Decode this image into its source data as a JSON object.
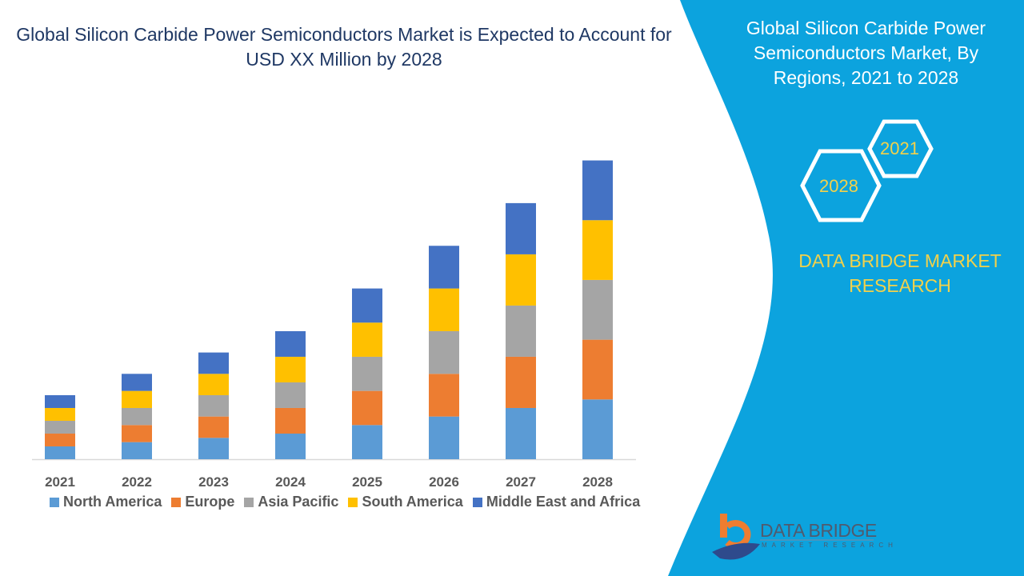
{
  "title": "Global Silicon Carbide Power Semiconductors Market is Expected to Account for USD XX Million by 2028",
  "side_panel": {
    "title": "Global Silicon Carbide Power Semiconductors Market, By Regions, 2021 to 2028",
    "hex_labels": [
      "2021",
      "2028"
    ],
    "brand": "DATA BRIDGE MARKET RESEARCH",
    "logo_text": "DATA BRIDGE",
    "logo_subtext": "MARKET RESEARCH",
    "panel_color": "#0ca3de"
  },
  "chart_data": {
    "type": "bar",
    "stacked": true,
    "title": "Global Silicon Carbide Power Semiconductors Market is Expected to Account for USD XX Million by 2028",
    "categories": [
      "2021",
      "2022",
      "2023",
      "2024",
      "2025",
      "2026",
      "2027",
      "2028"
    ],
    "series": [
      {
        "name": "North America",
        "color": "#5b9bd5",
        "values": [
          1.5,
          2,
          2.5,
          3,
          4,
          5,
          6,
          7
        ]
      },
      {
        "name": "Europe",
        "color": "#ed7d31",
        "values": [
          1.5,
          2,
          2.5,
          3,
          4,
          5,
          6,
          7
        ]
      },
      {
        "name": "Asia Pacific",
        "color": "#a5a5a5",
        "values": [
          1.5,
          2,
          2.5,
          3,
          4,
          5,
          6,
          7
        ]
      },
      {
        "name": "South America",
        "color": "#ffc000",
        "values": [
          1.5,
          2,
          2.5,
          3,
          4,
          5,
          6,
          7
        ]
      },
      {
        "name": "Middle East and Africa",
        "color": "#4472c4",
        "values": [
          1.5,
          2,
          2.5,
          3,
          4,
          5,
          6,
          7
        ]
      }
    ],
    "xlabel": "",
    "ylabel": "",
    "y_axis_shown": false,
    "grid": false,
    "legend_position": "bottom"
  }
}
